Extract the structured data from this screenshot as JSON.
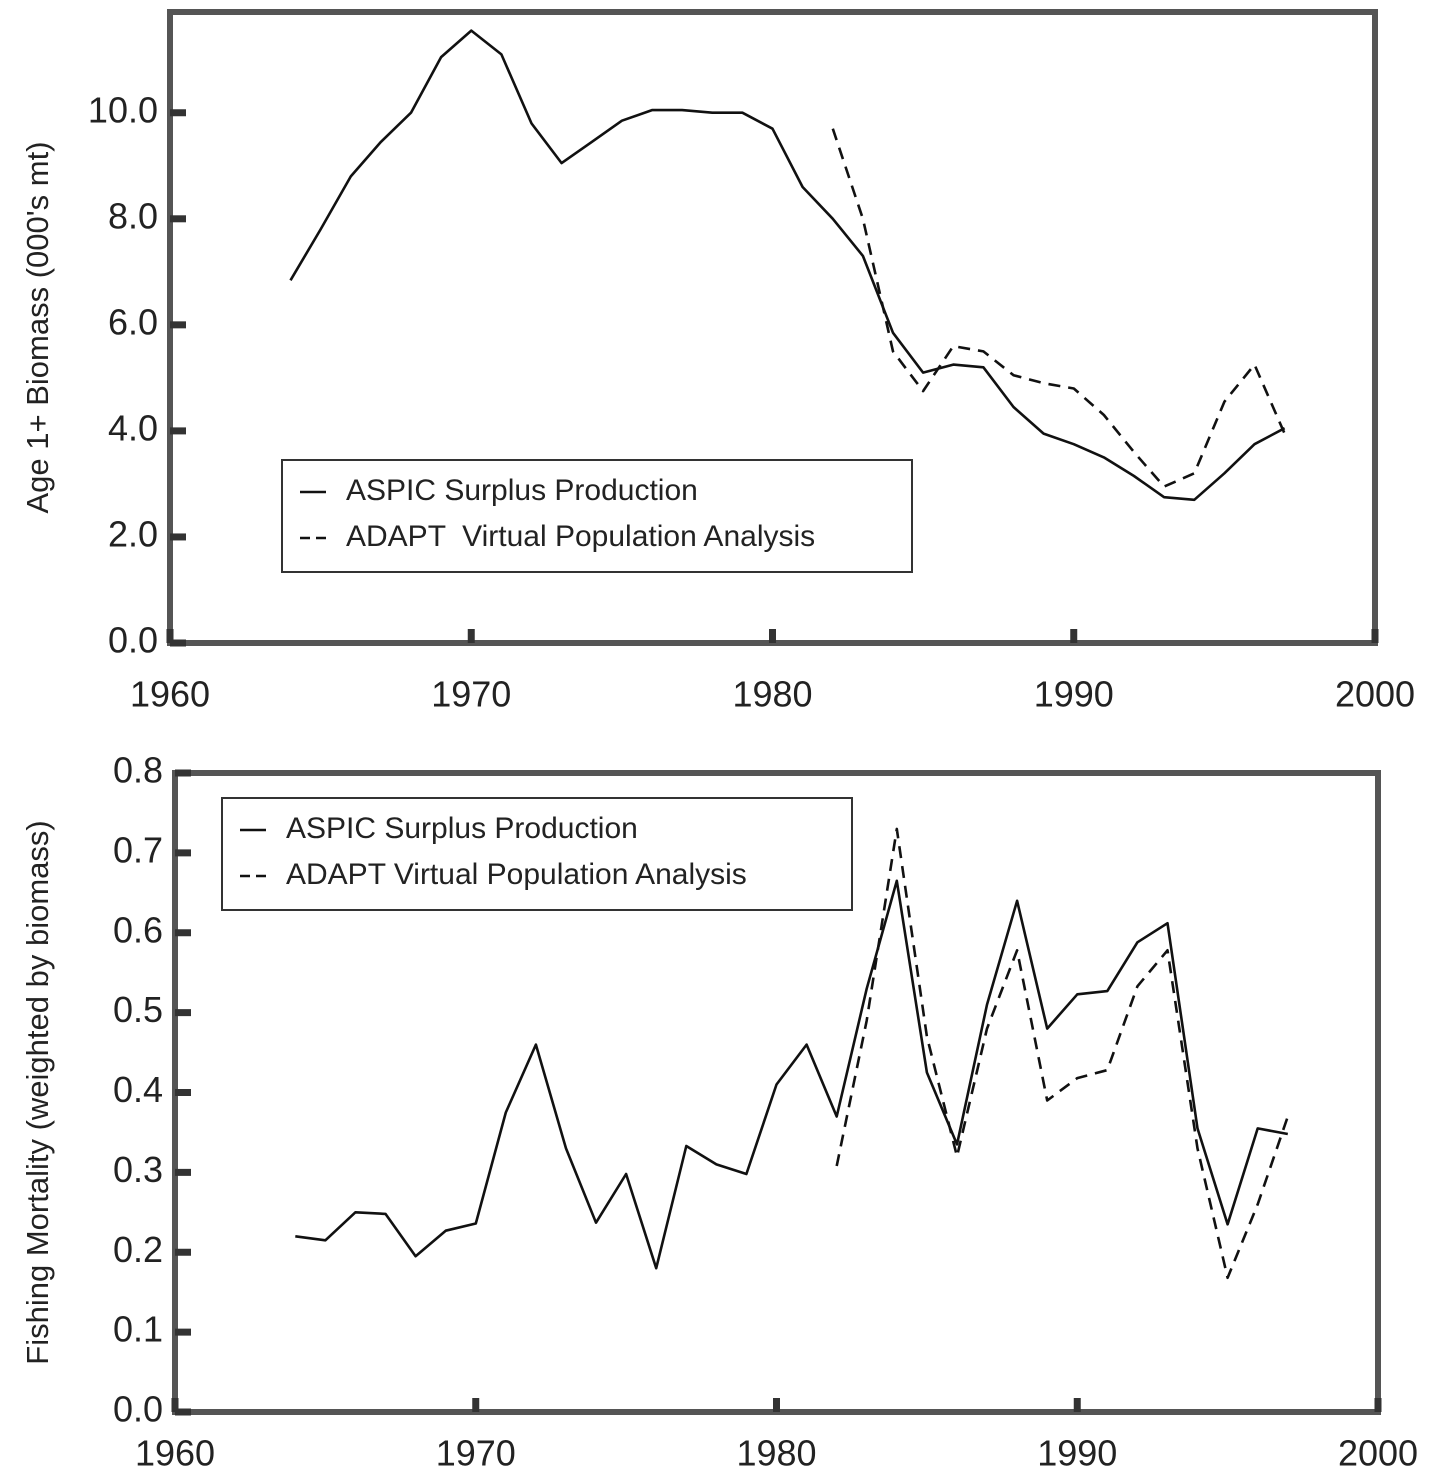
{
  "chart_data": [
    {
      "type": "line",
      "y_label": "Age 1+ Biomass (000's mt)",
      "x": [
        1964,
        1965,
        1966,
        1967,
        1968,
        1969,
        1970,
        1971,
        1972,
        1973,
        1974,
        1975,
        1976,
        1977,
        1978,
        1979,
        1980,
        1981,
        1982,
        1983,
        1984,
        1985,
        1986,
        1987,
        1988,
        1989,
        1990,
        1991,
        1992,
        1993,
        1994,
        1995,
        1996,
        1997
      ],
      "series": [
        {
          "name": "ASPIC Surplus Production",
          "color": "#111111",
          "linestyle": "solid",
          "values": [
            6.84,
            7.8,
            8.8,
            9.45,
            10.0,
            11.05,
            11.55,
            11.1,
            9.8,
            9.05,
            9.45,
            9.85,
            10.05,
            10.05,
            10.0,
            10.0,
            9.7,
            8.6,
            8.0,
            7.3,
            5.85,
            5.1,
            5.25,
            5.2,
            4.45,
            3.95,
            3.75,
            3.5,
            3.15,
            2.75,
            2.7,
            3.2,
            3.75,
            4.05
          ]
        },
        {
          "name": "ADAPT  Virtual Population Analysis",
          "color": "#111111",
          "linestyle": "dashed",
          "values": [
            null,
            null,
            null,
            null,
            null,
            null,
            null,
            null,
            null,
            null,
            null,
            null,
            null,
            null,
            null,
            null,
            null,
            null,
            9.7,
            8.0,
            5.5,
            4.75,
            5.6,
            5.5,
            5.05,
            4.9,
            4.8,
            4.3,
            3.6,
            2.95,
            3.2,
            4.55,
            5.25,
            3.95
          ]
        }
      ],
      "xlim": [
        1960,
        2000
      ],
      "xticks": [
        1960,
        1970,
        1980,
        1990,
        2000
      ],
      "ylim": [
        0,
        11.9
      ],
      "yticks": [
        {
          "value": 0,
          "label": "0.0"
        },
        {
          "value": 2,
          "label": "2.0"
        },
        {
          "value": 4,
          "label": "4.0"
        },
        {
          "value": 6,
          "label": "6.0"
        },
        {
          "value": 8,
          "label": "8.0"
        },
        {
          "value": 10,
          "label": "10.0"
        }
      ],
      "legend": "lower left"
    },
    {
      "type": "line",
      "y_label": "Fishing Mortality (weighted by biomass)",
      "x": [
        1964,
        1965,
        1966,
        1967,
        1968,
        1969,
        1970,
        1971,
        1972,
        1973,
        1974,
        1975,
        1976,
        1977,
        1978,
        1979,
        1980,
        1981,
        1982,
        1983,
        1984,
        1985,
        1986,
        1987,
        1988,
        1989,
        1990,
        1991,
        1992,
        1993,
        1994,
        1995,
        1996,
        1997
      ],
      "series": [
        {
          "name": "ASPIC Surplus Production",
          "color": "#111111",
          "linestyle": "solid",
          "values": [
            0.22,
            0.215,
            0.25,
            0.248,
            0.195,
            0.227,
            0.236,
            0.375,
            0.46,
            0.33,
            0.237,
            0.298,
            0.18,
            0.333,
            0.31,
            0.298,
            0.41,
            0.46,
            0.37,
            0.53,
            0.665,
            0.425,
            0.335,
            0.51,
            0.64,
            0.48,
            0.523,
            0.527,
            0.588,
            0.612,
            0.355,
            0.235,
            0.355,
            0.348
          ]
        },
        {
          "name": "ADAPT Virtual Population Analysis",
          "color": "#111111",
          "linestyle": "dashed",
          "values": [
            null,
            null,
            null,
            null,
            null,
            null,
            null,
            null,
            null,
            null,
            null,
            null,
            null,
            null,
            null,
            null,
            null,
            null,
            0.308,
            0.49,
            0.73,
            0.47,
            0.32,
            0.48,
            0.578,
            0.39,
            0.418,
            0.428,
            0.533,
            0.578,
            0.33,
            0.168,
            0.26,
            0.37
          ]
        }
      ],
      "xlim": [
        1960,
        2000
      ],
      "xticks": [
        1960,
        1970,
        1980,
        1990,
        2000
      ],
      "ylim": [
        0,
        0.8
      ],
      "yticks": [
        {
          "value": 0,
          "label": "0.0"
        },
        {
          "value": 0.1,
          "label": "0.1"
        },
        {
          "value": 0.2,
          "label": "0.2"
        },
        {
          "value": 0.3,
          "label": "0.3"
        },
        {
          "value": 0.4,
          "label": "0.4"
        },
        {
          "value": 0.5,
          "label": "0.5"
        },
        {
          "value": 0.6,
          "label": "0.6"
        },
        {
          "value": 0.7,
          "label": "0.7"
        },
        {
          "value": 0.8,
          "label": "0.8"
        }
      ],
      "legend": "upper left"
    }
  ]
}
